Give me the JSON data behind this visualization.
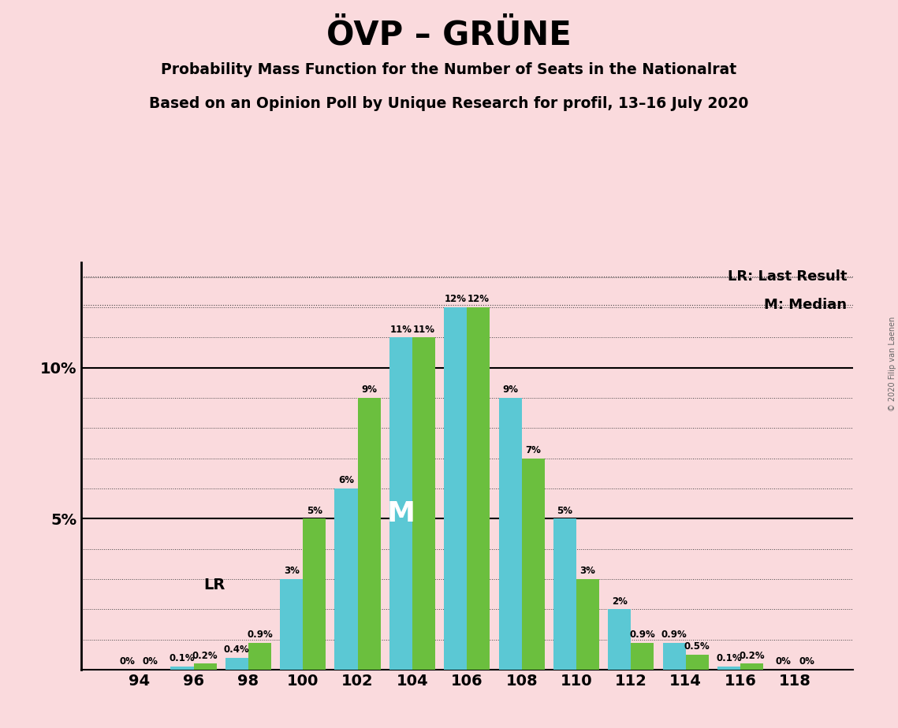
{
  "title": "ÖVP – GRÜNE",
  "subtitle1": "Probability Mass Function for the Number of Seats in the Nationalrat",
  "subtitle2": "Based on an Opinion Poll by Unique Research for profil, 13–16 July 2020",
  "copyright": "© 2020 Filip van Laenen",
  "categories": [
    94,
    96,
    98,
    100,
    102,
    104,
    106,
    108,
    110,
    112,
    114,
    116,
    118
  ],
  "cyan_values": [
    0.0,
    0.1,
    0.4,
    3.0,
    6.0,
    11.0,
    12.0,
    9.0,
    5.0,
    2.0,
    0.9,
    0.1,
    0.0
  ],
  "green_values": [
    0.0,
    0.2,
    0.9,
    5.0,
    9.0,
    11.0,
    12.0,
    7.0,
    3.0,
    0.9,
    0.5,
    0.2,
    0.0
  ],
  "cyan_labels": [
    "0%",
    "0.1%",
    "0.4%",
    "3%",
    "6%",
    "11%",
    "12%",
    "9%",
    "5%",
    "2%",
    "0.9%",
    "0.1%",
    "0%"
  ],
  "green_labels": [
    "0%",
    "0.2%",
    "0.9%",
    "5%",
    "9%",
    "11%",
    "12%",
    "7%",
    "3%",
    "0.9%",
    "0.5%",
    "0.2%",
    "0%"
  ],
  "cyan_color": "#5BC8D4",
  "green_color": "#6BBF3E",
  "background_color": "#FADADD",
  "ylim_max": 13.5,
  "bar_width": 0.42,
  "label_fontsize": 8.5,
  "tick_fontsize": 14,
  "title_fontsize": 30,
  "subtitle_fontsize": 13.5,
  "legend_fontsize": 13,
  "lr_index": 1,
  "median_bar_index": 5,
  "median_label": "M",
  "lr_label": "LR"
}
